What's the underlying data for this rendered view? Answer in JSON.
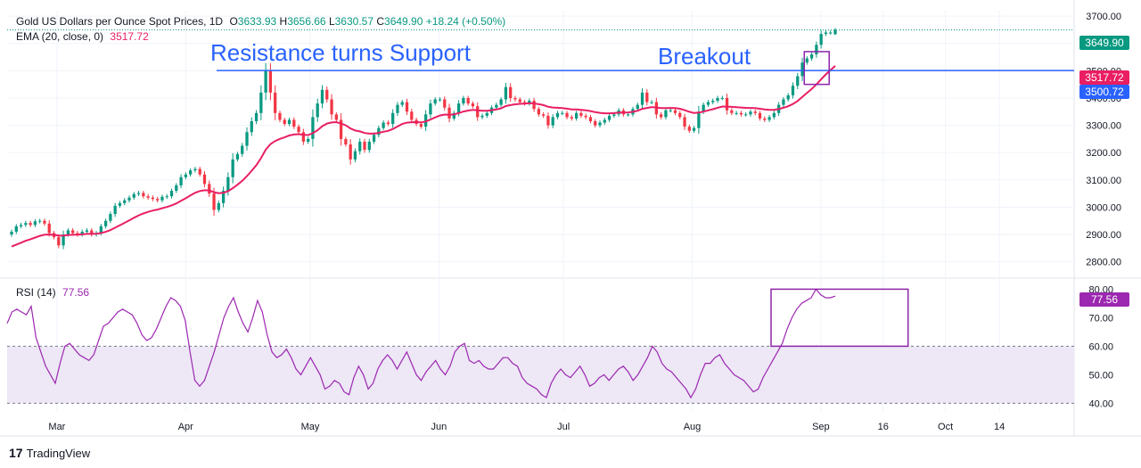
{
  "legend": {
    "title": "Gold US Dollars per Ounce Spot Prices, 1D",
    "o_label": "O",
    "o_value": "3633.93",
    "h_label": "H",
    "h_value": "3656.66",
    "l_label": "L",
    "l_value": "3630.57",
    "c_label": "C",
    "c_value": "3649.90",
    "change": "+18.24 (+0.50%)",
    "ema_label": "EMA (20, close, 0)",
    "ema_value": "3517.72",
    "rsi_label": "RSI (14)",
    "rsi_value": "77.56"
  },
  "annotations": {
    "resistance": "Resistance turns Support",
    "breakout": "Breakout"
  },
  "badges": {
    "price": "3649.90",
    "ema": "3517.72",
    "hline": "3500.72",
    "rsi": "77.56"
  },
  "branding": {
    "logo_mark": "17",
    "logo_text": "TradingView"
  },
  "colors": {
    "up": "#089981",
    "down": "#f23645",
    "ema": "#e91e63",
    "hline": "#2962ff",
    "rsi": "#9c27b0",
    "box": "#8e24aa",
    "rsi_band": "#ede7f6",
    "grid": "#f0f3fa"
  },
  "chart_data": [
    {
      "type": "candlestick",
      "title": "Gold US Dollars per Ounce Spot Prices, 1D",
      "ylim": [
        2740,
        3720
      ],
      "y_ticks": [
        2800,
        2900,
        3000,
        3100,
        3200,
        3300,
        3400,
        3500,
        3600,
        3700
      ],
      "x_ticks": [
        {
          "label": "Mar",
          "date": "2025-03-01"
        },
        {
          "label": "Apr",
          "date": "2025-04-01"
        },
        {
          "label": "May",
          "date": "2025-05-01"
        },
        {
          "label": "Jun",
          "date": "2025-06-01"
        },
        {
          "label": "Jul",
          "date": "2025-07-01"
        },
        {
          "label": "Aug",
          "date": "2025-08-01"
        },
        {
          "label": "Sep",
          "date": "2025-09-01"
        },
        {
          "label": "16",
          "date": "2025-09-16"
        },
        {
          "label": "Oct",
          "date": "2025-10-01"
        },
        {
          "label": "14",
          "date": "2025-10-14"
        }
      ],
      "x_range": [
        "2025-02-17",
        "2025-11-01"
      ],
      "horizontal_line": 3500.72,
      "breakout_box": {
        "from": "2025-08-28",
        "to": "2025-09-03",
        "low": 3450,
        "high": 3570
      },
      "close": [
        2910,
        2930,
        2935,
        2942,
        2935,
        2948,
        2950,
        2940,
        2905,
        2890,
        2860,
        2900,
        2915,
        2905,
        2900,
        2910,
        2915,
        2900,
        2905,
        2930,
        2950,
        2975,
        3005,
        3015,
        3025,
        3035,
        3048,
        3052,
        3040,
        3035,
        3030,
        3025,
        3038,
        3040,
        3060,
        3080,
        3110,
        3120,
        3135,
        3140,
        3120,
        3085,
        3050,
        2990,
        3015,
        3060,
        3110,
        3175,
        3195,
        3225,
        3275,
        3315,
        3345,
        3420,
        3500,
        3420,
        3345,
        3320,
        3305,
        3320,
        3295,
        3275,
        3240,
        3250,
        3330,
        3380,
        3430,
        3395,
        3340,
        3320,
        3250,
        3230,
        3175,
        3205,
        3240,
        3210,
        3240,
        3265,
        3290,
        3310,
        3305,
        3345,
        3375,
        3385,
        3350,
        3320,
        3305,
        3295,
        3340,
        3380,
        3395,
        3395,
        3365,
        3325,
        3345,
        3380,
        3400,
        3380,
        3370,
        3330,
        3335,
        3345,
        3365,
        3375,
        3395,
        3440,
        3400,
        3395,
        3385,
        3380,
        3390,
        3360,
        3340,
        3335,
        3300,
        3330,
        3345,
        3345,
        3330,
        3325,
        3345,
        3335,
        3330,
        3315,
        3300,
        3310,
        3320,
        3335,
        3340,
        3355,
        3340,
        3340,
        3360,
        3375,
        3420,
        3385,
        3385,
        3340,
        3330,
        3355,
        3355,
        3345,
        3330,
        3295,
        3280,
        3290,
        3350,
        3375,
        3385,
        3390,
        3400,
        3400,
        3355,
        3345,
        3345,
        3340,
        3340,
        3350,
        3345,
        3325,
        3320,
        3330,
        3345,
        3375,
        3395,
        3410,
        3445,
        3480,
        3530,
        3545,
        3560,
        3595,
        3635,
        3640,
        3640,
        3650
      ],
      "ema": {
        "period": 20,
        "last": 3517.72
      },
      "last": {
        "open": 3633.93,
        "high": 3656.66,
        "low": 3630.57,
        "close": 3649.9,
        "change": 18.24,
        "change_pct": 0.5
      }
    },
    {
      "type": "line",
      "title": "RSI (14)",
      "ylim": [
        37,
        82
      ],
      "y_ticks": [
        40,
        50,
        60,
        70,
        80
      ],
      "band": [
        40,
        60
      ],
      "series": [
        {
          "name": "RSI (14)",
          "values": [
            68,
            72,
            73,
            72,
            71,
            74,
            63,
            58,
            53,
            50,
            47,
            54,
            60,
            61,
            59,
            57,
            56,
            55,
            57,
            62,
            67,
            68,
            70,
            72,
            73,
            72,
            71,
            68,
            64,
            62,
            63,
            66,
            70,
            74,
            77,
            76,
            74,
            69,
            58,
            48,
            46,
            48,
            53,
            58,
            64,
            70,
            74,
            77,
            72,
            68,
            65,
            70,
            76,
            72,
            64,
            58,
            56,
            57,
            59,
            56,
            52,
            50,
            53,
            56,
            53,
            50,
            45,
            46,
            48,
            47,
            44,
            43,
            49,
            53,
            50,
            45,
            47,
            52,
            55,
            57,
            55,
            52,
            55,
            58,
            54,
            50,
            48,
            51,
            53,
            55,
            52,
            50,
            53,
            58,
            60,
            61,
            55,
            54,
            55,
            53,
            52,
            52,
            54,
            56,
            56,
            54,
            53,
            49,
            47,
            46,
            45,
            43,
            42,
            47,
            50,
            52,
            50,
            49,
            51,
            53,
            50,
            46,
            47,
            49,
            50,
            48,
            50,
            52,
            53,
            51,
            48,
            50,
            53,
            56,
            60,
            58,
            54,
            52,
            51,
            49,
            47,
            45,
            42,
            45,
            50,
            54,
            54,
            56,
            57,
            54,
            52,
            50,
            49,
            48,
            46,
            44,
            45,
            49,
            52,
            55,
            58,
            61,
            66,
            70,
            73,
            75,
            76,
            77,
            80,
            78,
            77,
            77,
            77.56
          ]
        }
      ],
      "last": 77.56,
      "highlight_box": {
        "from": "2025-08-20",
        "to": "2025-09-22",
        "low": 60,
        "high": 80
      }
    }
  ]
}
